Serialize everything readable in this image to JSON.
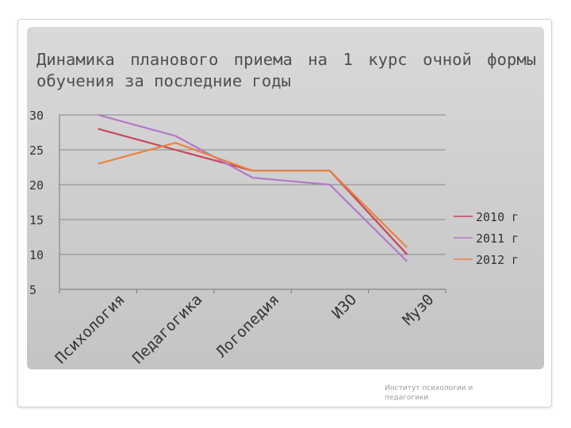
{
  "slide": {
    "title": "Динамика планового приема на 1 курс очной формы обучения за последние годы",
    "footer": "Институт психологии и педагогики"
  },
  "chart_data": {
    "type": "line",
    "categories": [
      "Психология",
      "Педагогика",
      "Логопедия",
      "ИЗО",
      "Муз0"
    ],
    "series": [
      {
        "name": "2010 г",
        "values": [
          28,
          25,
          22,
          22,
          10
        ],
        "color": "#c8465a"
      },
      {
        "name": "2011 г",
        "values": [
          30,
          27,
          21,
          20,
          9
        ],
        "color": "#b477cb"
      },
      {
        "name": "2012 г",
        "values": [
          23,
          26,
          22,
          22,
          11
        ],
        "color": "#ea8240"
      }
    ],
    "ylim": [
      5,
      30
    ],
    "yticks": [
      5,
      10,
      15,
      20,
      25,
      30
    ],
    "grid": true,
    "legend": "right"
  }
}
